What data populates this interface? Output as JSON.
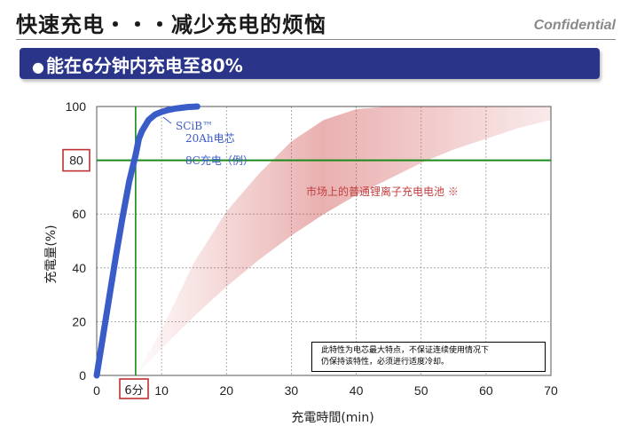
{
  "header": {
    "title": "快速充电・・・减少充电的烦恼",
    "confidential": "Confidential"
  },
  "banner": {
    "bullet": "●",
    "text": "能在6分钟内充电至80%"
  },
  "note": {
    "line1": "此特性为电芯最大特点，不保证连续使用情况下",
    "line2": "仍保持该特性，必须进行适度冷却。"
  },
  "chart_data": {
    "type": "line",
    "title": "",
    "xlabel": "充電時間(min)",
    "ylabel": "充電量(%)",
    "xlim": [
      0,
      70
    ],
    "ylim": [
      0,
      100
    ],
    "xticks": [
      0,
      10,
      20,
      30,
      40,
      50,
      60,
      70
    ],
    "yticks": [
      0,
      20,
      40,
      60,
      80,
      100
    ],
    "grid": true,
    "series": [
      {
        "name": "SCiB™ 20Ah电芯 8C充电（例）",
        "color": "#3a5cc8",
        "x": [
          0,
          1,
          2,
          3,
          4,
          5,
          6,
          6.5,
          7,
          8,
          9,
          10,
          11,
          12,
          13,
          14,
          15.5
        ],
        "y": [
          0,
          15,
          30,
          45,
          59,
          72,
          82,
          88,
          91,
          95,
          97,
          98,
          98.7,
          99.2,
          99.5,
          99.8,
          100
        ]
      }
    ],
    "band": {
      "label": "市场上的普通锂离子充电电池",
      "mark": "※",
      "color": "#d05050",
      "x_upper": [
        6,
        10,
        15,
        20,
        25,
        30,
        35,
        40,
        45,
        50,
        55,
        60,
        70
      ],
      "upper": [
        0,
        17,
        42,
        61,
        75,
        87,
        95,
        99,
        100,
        100,
        100,
        100,
        100
      ],
      "x_lower": [
        6,
        10,
        15,
        20,
        25,
        30,
        35,
        40,
        45,
        50,
        55,
        60,
        65,
        70
      ],
      "lower": [
        0,
        10,
        22,
        33,
        43,
        52,
        60,
        67,
        73,
        79,
        84,
        88,
        92,
        95
      ]
    },
    "reference": {
      "y": 80,
      "x": 6,
      "y_label": "80",
      "x_label": "6分",
      "color": "#1a8a1a"
    },
    "annotations": [
      {
        "line1": "SCiB™",
        "line2": "20Ah电芯"
      },
      {
        "text": "8C充电（例）"
      }
    ]
  }
}
